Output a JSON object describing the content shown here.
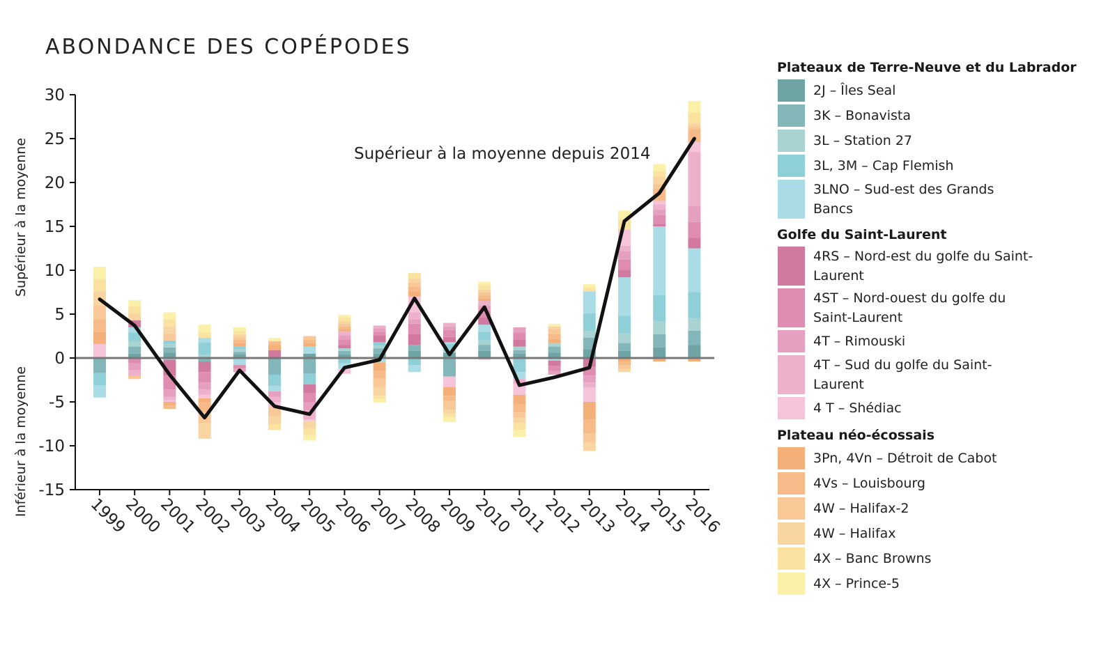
{
  "title": "ABONDANCE DES COPÉPODES",
  "chart_data": {
    "type": "bar",
    "stacked": true,
    "categories": [
      "1999",
      "2000",
      "2001",
      "2002",
      "2003",
      "2004",
      "2005",
      "2006",
      "2007",
      "2008",
      "2009",
      "2010",
      "2011",
      "2012",
      "2013",
      "2014",
      "2015",
      "2016"
    ],
    "ylabel_top": "Supérieur à la moyenne",
    "ylabel_bottom": "Inférieur à la moyenne",
    "ylim": [
      -15,
      30
    ],
    "yticks": [
      30,
      25,
      20,
      15,
      10,
      5,
      0,
      -5,
      -10,
      -15
    ],
    "annotation": "Supérieur à la moyenne depuis 2014",
    "line_series": {
      "name": "",
      "values": [
        6.7,
        3.7,
        -1.9,
        -6.8,
        -1.4,
        -5.5,
        -6.4,
        -1.1,
        -0.2,
        6.8,
        0.4,
        5.8,
        -3.1,
        -2.2,
        -1.1,
        15.6,
        18.8,
        25.0
      ]
    },
    "series": [
      {
        "name": "2J – Îles Seal",
        "group": 0,
        "color": "#6fa4a5",
        "values": [
          0,
          0.5,
          0.6,
          0,
          0.4,
          0,
          0.5,
          0.4,
          0.5,
          0.8,
          0.6,
          0.8,
          0.5,
          0.6,
          1.0,
          0.8,
          1.2,
          1.5
        ]
      },
      {
        "name": "3K – Bonavista",
        "group": 0,
        "color": "#82b6b8",
        "values": [
          -1.7,
          0.8,
          0.6,
          -0.4,
          0.3,
          -1.9,
          -1.8,
          0.4,
          0.6,
          0.7,
          -2.1,
          0.7,
          0.4,
          0.7,
          1.3,
          0.9,
          1.5,
          1.6
        ]
      },
      {
        "name": "3L – Station 27",
        "group": 0,
        "color": "#a8d3d1",
        "values": [
          0,
          0.6,
          0.4,
          0.4,
          0.3,
          0,
          0,
          0.3,
          0.3,
          0,
          0.4,
          0.5,
          0.4,
          0.4,
          0.8,
          1.1,
          1.5,
          1.4
        ]
      },
      {
        "name": "3L, 3M – Cap Flemish",
        "group": 0,
        "color": "#8fcfd7",
        "values": [
          -1.4,
          1.0,
          0.4,
          1.4,
          0.3,
          -1.3,
          -1.2,
          -0.6,
          0.4,
          -0.8,
          0.6,
          1.0,
          -1.6,
          0,
          2.0,
          2.0,
          3.0,
          3.0
        ]
      },
      {
        "name": "3LNO – Sud-est des Grands Bancs",
        "group": 0,
        "color": "#a9dce5",
        "values": [
          -1.4,
          0.6,
          -0.2,
          0.5,
          -0.8,
          -0.6,
          0.8,
          -0.6,
          -0.5,
          -0.8,
          0.2,
          0.8,
          -0.8,
          -0.3,
          2.5,
          4.4,
          7.8,
          5.0
        ]
      },
      {
        "name": "4RS – Nord-est du golfe du Saint-Laurent",
        "group": 1,
        "color": "#d2799f",
        "values": [
          0,
          0.8,
          -1.8,
          -1.2,
          0,
          0.9,
          -1.0,
          0.4,
          0.8,
          1.2,
          0.6,
          0.8,
          0.8,
          -0.6,
          -1.0,
          0.8,
          0.3,
          1.2
        ]
      },
      {
        "name": "4ST – Nord-ouest du golfe du Saint-Laurent",
        "group": 1,
        "color": "#de8db0",
        "values": [
          0,
          -0.6,
          -1.6,
          -1.2,
          -0.4,
          0,
          -1.0,
          0.6,
          0.4,
          1.2,
          0.8,
          0.8,
          0.8,
          -0.6,
          -1.0,
          1.2,
          1.0,
          1.8
        ]
      },
      {
        "name": "4T – Rimouski",
        "group": 1,
        "color": "#e5a0bf",
        "values": [
          0,
          -0.8,
          -0.8,
          -0.8,
          -0.4,
          -0.6,
          -1.0,
          0.5,
          0.4,
          0.5,
          0.4,
          0.6,
          0.6,
          -0.4,
          -0.8,
          1.0,
          0.6,
          1.8
        ]
      },
      {
        "name": "4T – Sud du golfe du Saint-Laurent",
        "group": 1,
        "color": "#eeb1cc",
        "values": [
          0,
          -0.6,
          -0.4,
          -0.6,
          0,
          -0.6,
          -1.0,
          0.4,
          0.3,
          0.8,
          0.4,
          0.5,
          -0.6,
          0,
          -0.6,
          0.6,
          0.6,
          6.2
        ]
      },
      {
        "name": "4 T – Shédiac",
        "group": 1,
        "color": "#f6c4d9",
        "values": [
          1.6,
          0,
          -0.2,
          -0.4,
          0,
          -0.6,
          -0.2,
          -0.6,
          0,
          1.8,
          -1.2,
          -0.2,
          -1.2,
          0,
          -1.6,
          1.8,
          0.4,
          1.1
        ]
      },
      {
        "name": "3Pn, 4Vn – Détroit de Cabot",
        "group": 2,
        "color": "#f5b07a",
        "values": [
          1.4,
          0,
          -0.4,
          -0.4,
          0.4,
          0.6,
          0.4,
          0.3,
          -1.0,
          0.6,
          -1.0,
          0.3,
          -1.0,
          0.5,
          -2.0,
          -0.4,
          -0.4,
          -0.4
        ]
      },
      {
        "name": "4Vs – Louisbourg",
        "group": 2,
        "color": "#f7bb89",
        "values": [
          1.4,
          -0.2,
          -0.4,
          -1.2,
          0.4,
          0.4,
          0.4,
          0.3,
          -0.8,
          0.5,
          -0.6,
          0.3,
          -1.0,
          0.5,
          -1.6,
          -0.4,
          1.4,
          1.5
        ]
      },
      {
        "name": "4W – Halifax-2",
        "group": 2,
        "color": "#f8c896",
        "values": [
          1.6,
          -0.2,
          0.8,
          -1.2,
          0.3,
          -1.0,
          0.4,
          0.3,
          -1.0,
          0.5,
          -1.0,
          0.4,
          -0.6,
          0.6,
          -1.0,
          -0.4,
          0.6,
          0.3
        ]
      },
      {
        "name": "4W – Halifax",
        "group": 2,
        "color": "#f9d5a2",
        "values": [
          1.6,
          0.8,
          0.8,
          -1.8,
          0.3,
          -1.0,
          -0.8,
          0.3,
          -1.0,
          0.5,
          -0.4,
          0.3,
          -0.6,
          0.3,
          -1.0,
          -0.4,
          0.8,
          0.4
        ]
      },
      {
        "name": "4X – Banc Browns",
        "group": 2,
        "color": "#fae3a1",
        "values": [
          1.4,
          0.8,
          0.8,
          0.6,
          0.4,
          -0.6,
          -0.8,
          0.4,
          -0.4,
          0.6,
          -0.4,
          0.5,
          -0.8,
          0,
          0.4,
          1.2,
          0.6,
          1.2
        ]
      },
      {
        "name": "4X – Prince-5",
        "group": 2,
        "color": "#fbf0a8",
        "values": [
          1.4,
          0.7,
          0.8,
          0.9,
          0.4,
          0.4,
          -0.6,
          0.3,
          -0.4,
          0,
          -0.6,
          0.4,
          -0.8,
          0.3,
          0.4,
          1.0,
          0.8,
          1.3
        ]
      }
    ]
  },
  "legend": {
    "groups": [
      {
        "title": "Plateaux de Terre-Neuve et du Labrador"
      },
      {
        "title": "Golfe du Saint-Laurent"
      },
      {
        "title": "Plateau néo-écossais"
      }
    ]
  }
}
